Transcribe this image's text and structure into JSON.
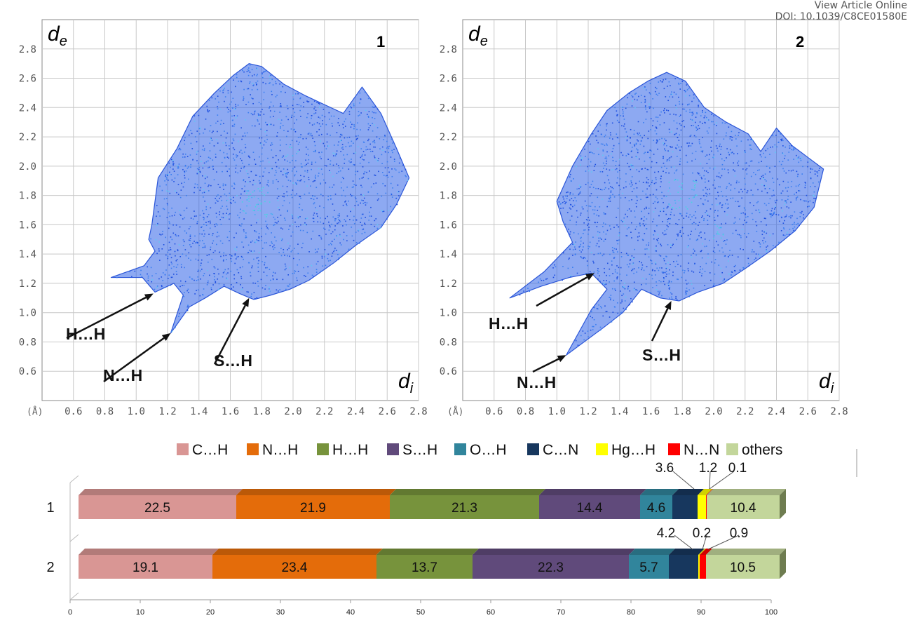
{
  "header": {
    "link": "View Article Online",
    "doi": "DOI: 10.1039/C8CE01580E"
  },
  "chart_data": [
    {
      "type": "scatter",
      "panel": "1",
      "xlabel": "d",
      "xlabel_sub": "i",
      "ylabel": "d",
      "ylabel_sub": "e",
      "unit_label": "(Å)",
      "xlim": [
        0.4,
        2.8
      ],
      "ylim": [
        0.4,
        3.0
      ],
      "grid": true,
      "x_ticks": [
        "0.6",
        "0.8",
        "1.0",
        "1.2",
        "1.4",
        "1.6",
        "1.8",
        "2.0",
        "2.2",
        "2.4",
        "2.6",
        "2.8"
      ],
      "y_ticks": [
        "0.6",
        "0.8",
        "1.0",
        "1.2",
        "1.4",
        "1.6",
        "1.8",
        "2.0",
        "2.2",
        "2.4",
        "2.6",
        "2.8"
      ],
      "annotations": [
        {
          "text": "H…H",
          "arrow_to": [
            1.11,
            1.13
          ]
        },
        {
          "text": "N…H",
          "arrow_to": [
            1.22,
            0.86
          ]
        },
        {
          "text": "S…H",
          "arrow_to": [
            1.72,
            1.1
          ]
        }
      ],
      "outline": [
        [
          0.84,
          1.24
        ],
        [
          1.05,
          1.32
        ],
        [
          1.12,
          1.42
        ],
        [
          1.08,
          1.5
        ],
        [
          1.1,
          1.6
        ],
        [
          1.14,
          1.92
        ],
        [
          1.26,
          2.12
        ],
        [
          1.36,
          2.34
        ],
        [
          1.5,
          2.5
        ],
        [
          1.62,
          2.62
        ],
        [
          1.72,
          2.7
        ],
        [
          1.8,
          2.68
        ],
        [
          1.94,
          2.56
        ],
        [
          2.08,
          2.48
        ],
        [
          2.2,
          2.42
        ],
        [
          2.32,
          2.36
        ],
        [
          2.44,
          2.54
        ],
        [
          2.56,
          2.36
        ],
        [
          2.66,
          2.12
        ],
        [
          2.74,
          1.92
        ],
        [
          2.66,
          1.74
        ],
        [
          2.56,
          1.58
        ],
        [
          2.4,
          1.46
        ],
        [
          2.26,
          1.34
        ],
        [
          2.1,
          1.22
        ],
        [
          1.98,
          1.16
        ],
        [
          1.86,
          1.12
        ],
        [
          1.75,
          1.09
        ],
        [
          1.66,
          1.13
        ],
        [
          1.56,
          1.18
        ],
        [
          1.44,
          1.1
        ],
        [
          1.34,
          1.04
        ],
        [
          1.22,
          0.86
        ],
        [
          1.3,
          1.12
        ],
        [
          1.24,
          1.2
        ],
        [
          1.12,
          1.14
        ],
        [
          1.04,
          1.24
        ]
      ]
    },
    {
      "type": "scatter",
      "panel": "2",
      "xlabel": "d",
      "xlabel_sub": "i",
      "ylabel": "d",
      "ylabel_sub": "e",
      "unit_label": "(Å)",
      "xlim": [
        0.4,
        2.8
      ],
      "ylim": [
        0.4,
        3.0
      ],
      "grid": true,
      "x_ticks": [
        "0.6",
        "0.8",
        "1.0",
        "1.2",
        "1.4",
        "1.6",
        "1.8",
        "2.0",
        "2.2",
        "2.4",
        "2.6",
        "2.8"
      ],
      "y_ticks": [
        "0.6",
        "0.8",
        "1.0",
        "1.2",
        "1.4",
        "1.6",
        "1.8",
        "2.0",
        "2.2",
        "2.4",
        "2.6",
        "2.8"
      ],
      "annotations": [
        {
          "text": "H…H",
          "arrow_to": [
            1.24,
            1.27
          ]
        },
        {
          "text": "N…H",
          "arrow_to": [
            1.06,
            0.71
          ]
        },
        {
          "text": "S…H",
          "arrow_to": [
            1.73,
            1.08
          ]
        }
      ],
      "outline": [
        [
          0.7,
          1.1
        ],
        [
          0.92,
          1.28
        ],
        [
          1.1,
          1.48
        ],
        [
          1.04,
          1.62
        ],
        [
          1.0,
          1.76
        ],
        [
          1.1,
          2.0
        ],
        [
          1.22,
          2.22
        ],
        [
          1.32,
          2.38
        ],
        [
          1.46,
          2.5
        ],
        [
          1.58,
          2.58
        ],
        [
          1.7,
          2.64
        ],
        [
          1.82,
          2.58
        ],
        [
          1.94,
          2.4
        ],
        [
          2.08,
          2.3
        ],
        [
          2.22,
          2.22
        ],
        [
          2.3,
          2.1
        ],
        [
          2.4,
          2.26
        ],
        [
          2.5,
          2.14
        ],
        [
          2.6,
          2.06
        ],
        [
          2.7,
          1.98
        ],
        [
          2.64,
          1.72
        ],
        [
          2.52,
          1.56
        ],
        [
          2.36,
          1.42
        ],
        [
          2.2,
          1.3
        ],
        [
          2.06,
          1.2
        ],
        [
          1.9,
          1.14
        ],
        [
          1.78,
          1.08
        ],
        [
          1.66,
          1.1
        ],
        [
          1.54,
          1.16
        ],
        [
          1.42,
          1.0
        ],
        [
          1.3,
          0.9
        ],
        [
          1.06,
          0.71
        ],
        [
          1.22,
          1.02
        ],
        [
          1.32,
          1.16
        ],
        [
          1.22,
          1.27
        ],
        [
          1.08,
          1.24
        ],
        [
          0.9,
          1.18
        ]
      ]
    },
    {
      "type": "bar",
      "orientation": "horizontal",
      "stacked": true,
      "categories": [
        "1",
        "2"
      ],
      "xlim": [
        0,
        100
      ],
      "x_ticks": [
        "0",
        "10",
        "20",
        "30",
        "40",
        "50",
        "60",
        "70",
        "80",
        "90",
        "100"
      ],
      "legend_position": "top",
      "series": [
        {
          "name": "C…H",
          "color": "#d99694",
          "values": [
            22.5,
            19.1
          ]
        },
        {
          "name": "N…H",
          "color": "#e46c0a",
          "values": [
            21.9,
            23.4
          ]
        },
        {
          "name": "H…H",
          "color": "#77933c",
          "values": [
            21.3,
            13.7
          ]
        },
        {
          "name": "S…H",
          "color": "#604a7b",
          "values": [
            14.4,
            22.3
          ]
        },
        {
          "name": "O…H",
          "color": "#31859c",
          "values": [
            4.6,
            5.7
          ]
        },
        {
          "name": "C…N",
          "color": "#17375e",
          "values": [
            3.6,
            4.2
          ]
        },
        {
          "name": "Hg…H",
          "color": "#ffff00",
          "values": [
            1.2,
            0.2
          ]
        },
        {
          "name": "N…N",
          "color": "#ff0000",
          "values": [
            0.1,
            0.9
          ]
        },
        {
          "name": "others",
          "color": "#c3d69b",
          "values": [
            10.4,
            10.5
          ]
        }
      ],
      "labels": [
        [
          "22.5",
          "21.9",
          "21.3",
          "14.4",
          "4.6",
          "3.6",
          "1.2",
          "0.1",
          "10.4"
        ],
        [
          "19.1",
          "23.4",
          "13.7",
          "22.3",
          "5.7",
          "4.2",
          "0.2",
          "0.9",
          "10.5"
        ]
      ]
    }
  ]
}
